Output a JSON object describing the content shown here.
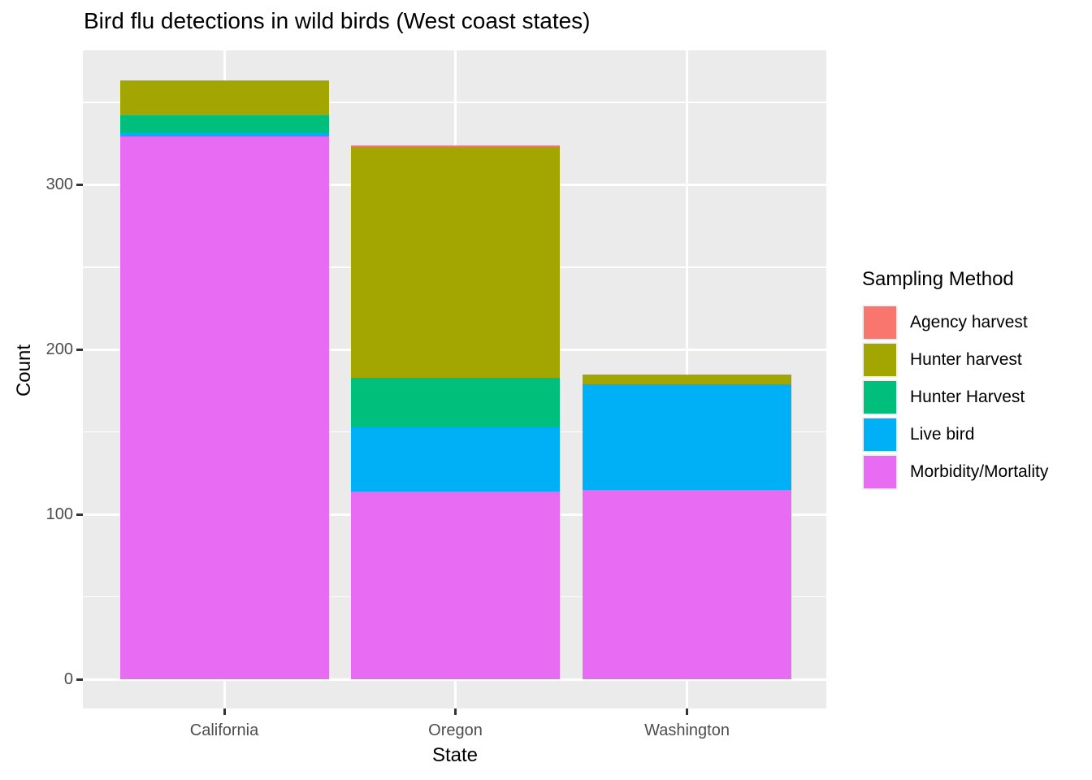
{
  "title": "Bird flu detections in wild birds (West coast states)",
  "chart_data": {
    "type": "bar",
    "stacked": true,
    "title": "Bird flu detections in wild birds (West coast states)",
    "xlabel": "State",
    "ylabel": "Count",
    "categories": [
      "California",
      "Oregon",
      "Washington"
    ],
    "series": [
      {
        "name": "Morbidity/Mortality",
        "color": "#E76BF3",
        "values": [
          329,
          114,
          115
        ]
      },
      {
        "name": "Live bird",
        "color": "#00B0F6",
        "values": [
          2,
          39,
          64
        ]
      },
      {
        "name": "Hunter Harvest",
        "color": "#00BF7D",
        "values": [
          11,
          30,
          0
        ]
      },
      {
        "name": "Hunter harvest",
        "color": "#A3A500",
        "values": [
          21,
          140,
          6
        ]
      },
      {
        "name": "Agency harvest",
        "color": "#F8766D",
        "values": [
          0,
          1,
          0
        ]
      }
    ],
    "totals": [
      363,
      324,
      185
    ],
    "ylim": [
      -18,
      381
    ],
    "yticks": [
      0,
      100,
      200,
      300
    ],
    "yticks_minor": [
      50,
      150,
      250,
      350
    ],
    "grid": true,
    "legend_position": "right"
  },
  "legend": {
    "title": "Sampling Method",
    "items": [
      {
        "label": "Agency harvest",
        "color": "#F8766D"
      },
      {
        "label": "Hunter harvest",
        "color": "#A3A500"
      },
      {
        "label": "Hunter Harvest",
        "color": "#00BF7D"
      },
      {
        "label": "Live bird",
        "color": "#00B0F6"
      },
      {
        "label": "Morbidity/Mortality",
        "color": "#E76BF3"
      }
    ]
  },
  "colors": {
    "panel_bg": "#EBEBEB",
    "grid": "#FFFFFF",
    "tick_mark": "#333333",
    "tick_label": "#4D4D4D",
    "text": "#000000",
    "legend_key_bg": "#F2F2F2"
  }
}
